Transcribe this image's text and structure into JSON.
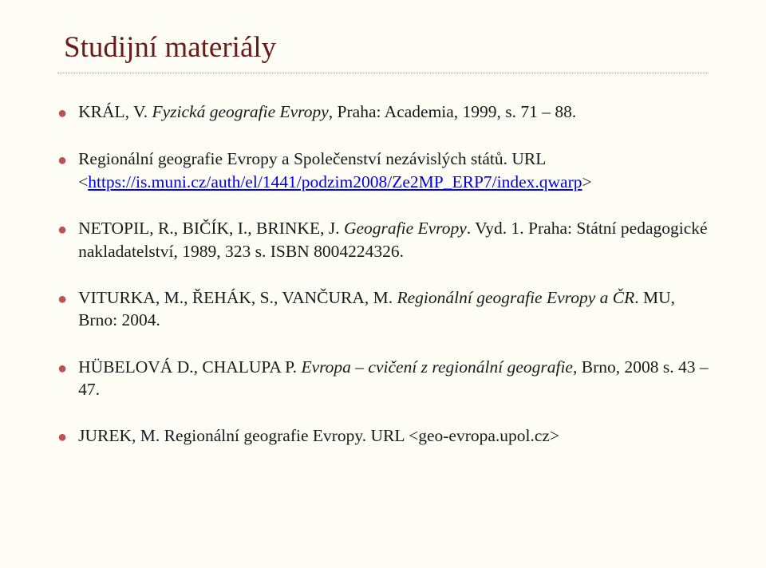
{
  "title": "Studijní materiály",
  "bullet_color": "#c0504d",
  "title_color": "#6b1a1a",
  "background_color": "#fdfdf5",
  "link_color": "#0000ee",
  "text_color": "#1a1a1a",
  "items": [
    {
      "pre": "KRÁL, V. ",
      "italic": "Fyzická geografie Evropy",
      "post": ", Praha: Academia, 1999, s. 71 – 88."
    },
    {
      "pre": "Regionální geografie Evropy a Společenství nezávislých států. URL <",
      "link": "https://is.muni.cz/auth/el/1441/podzim2008/Ze2MP_ERP7/index.qwarp",
      "post": ">"
    },
    {
      "pre": "NETOPIL, R., BIČÍK, I., BRINKE, J. ",
      "italic": "Geografie Evropy",
      "post": ". Vyd. 1. Praha: Státní pedagogické nakladatelství, 1989, 323 s. ISBN 8004224326."
    },
    {
      "pre": "VITURKA, M., ŘEHÁK, S., VANČURA, M. ",
      "italic": "Regionální geografie Evropy a ČR",
      "post": ". MU, Brno: 2004."
    },
    {
      "pre": "HÜBELOVÁ D., CHALUPA P. ",
      "italic": "Evropa – cvičení z regionální geografie",
      "post": ", Brno, 2008 s. 43 – 47."
    },
    {
      "pre": "JUREK, M. Regionální geografie Evropy. URL <geo-evropa.upol.cz>",
      "italic": "",
      "post": ""
    }
  ]
}
